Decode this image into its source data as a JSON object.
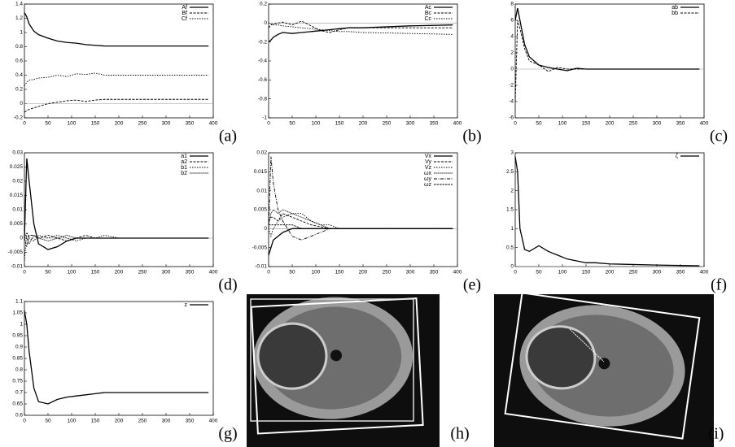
{
  "chart_data": [
    {
      "type": "line",
      "label": "(a)",
      "x": [
        0,
        5,
        10,
        20,
        30,
        50,
        70,
        90,
        110,
        130,
        150,
        170,
        200,
        300,
        390
      ],
      "xlim": [
        0,
        400
      ],
      "xticks": [
        0,
        50,
        100,
        150,
        200,
        250,
        300,
        350,
        400
      ],
      "ylim": [
        -0.2,
        1.4
      ],
      "yticks": [
        -0.2,
        0,
        0.2,
        0.4,
        0.6,
        0.8,
        1,
        1.2,
        1.4
      ],
      "series": [
        {
          "name": "Af",
          "color": "#000000",
          "values": [
            1.28,
            1.22,
            1.12,
            1.02,
            0.97,
            0.92,
            0.88,
            0.86,
            0.85,
            0.83,
            0.82,
            0.81,
            0.81,
            0.81,
            0.81
          ]
        },
        {
          "name": "Bf",
          "color": "#000000",
          "values": [
            -0.12,
            -0.1,
            -0.08,
            -0.06,
            -0.04,
            0.0,
            0.02,
            0.04,
            0.05,
            0.03,
            0.05,
            0.06,
            0.06,
            0.06,
            0.06
          ]
        },
        {
          "name": "Cf",
          "color": "#000000",
          "values": [
            0.25,
            0.3,
            0.33,
            0.34,
            0.36,
            0.37,
            0.4,
            0.38,
            0.42,
            0.41,
            0.43,
            0.4,
            0.4,
            0.4,
            0.4
          ]
        }
      ]
    },
    {
      "type": "line",
      "label": "(b)",
      "x": [
        0,
        5,
        10,
        20,
        30,
        50,
        70,
        90,
        110,
        130,
        150,
        170,
        200,
        300,
        390
      ],
      "xlim": [
        0,
        400
      ],
      "xticks": [
        0,
        50,
        100,
        150,
        200,
        250,
        300,
        350,
        400
      ],
      "ylim": [
        -1,
        0.2
      ],
      "yticks": [
        -1,
        -0.8,
        -0.6,
        -0.4,
        -0.2,
        0,
        0.2
      ],
      "series": [
        {
          "name": "Ac",
          "color": "#000000",
          "values": [
            -0.2,
            -0.18,
            -0.15,
            -0.12,
            -0.1,
            -0.11,
            -0.1,
            -0.09,
            -0.08,
            -0.07,
            -0.06,
            -0.05,
            -0.05,
            -0.03,
            -0.02
          ]
        },
        {
          "name": "Bc",
          "color": "#000000",
          "values": [
            -0.05,
            -0.02,
            -0.01,
            0,
            0.01,
            -0.02,
            0.02,
            -0.03,
            -0.08,
            -0.1,
            -0.07,
            -0.05,
            -0.05,
            -0.05,
            -0.05
          ]
        },
        {
          "name": "Cc",
          "color": "#000000",
          "values": [
            0,
            -0.01,
            -0.02,
            -0.02,
            -0.03,
            -0.04,
            -0.05,
            -0.06,
            -0.07,
            -0.08,
            -0.09,
            -0.09,
            -0.1,
            -0.11,
            -0.12
          ]
        }
      ]
    },
    {
      "type": "line",
      "label": "(c)",
      "x": [
        0,
        5,
        10,
        20,
        30,
        50,
        70,
        90,
        110,
        130,
        150,
        170,
        200,
        300,
        390
      ],
      "xlim": [
        0,
        400
      ],
      "xticks": [
        0,
        50,
        100,
        150,
        200,
        250,
        300,
        350,
        400
      ],
      "ylim": [
        -6,
        8
      ],
      "yticks": [
        -6,
        -4,
        -2,
        0,
        2,
        4,
        6,
        8
      ],
      "series": [
        {
          "name": "ab",
          "color": "#000000",
          "values": [
            6,
            7.5,
            6,
            3,
            1.5,
            0.5,
            0.2,
            0,
            -0.2,
            0.1,
            0,
            0,
            0,
            0,
            0
          ]
        },
        {
          "name": "bb",
          "color": "#000000",
          "values": [
            -4,
            6,
            5,
            2.5,
            1,
            0.5,
            -0.3,
            0.2,
            0,
            0,
            0,
            0,
            0,
            0,
            0
          ]
        }
      ]
    },
    {
      "type": "line",
      "label": "(d)",
      "x": [
        0,
        5,
        10,
        20,
        30,
        50,
        70,
        90,
        110,
        130,
        150,
        170,
        200,
        300,
        390
      ],
      "xlim": [
        0,
        400
      ],
      "xticks": [
        0,
        50,
        100,
        150,
        200,
        250,
        300,
        350,
        400
      ],
      "ylim": [
        -0.01,
        0.03
      ],
      "yticks": [
        -0.01,
        -0.005,
        0,
        0.005,
        0.01,
        0.015,
        0.02,
        0.025,
        0.03
      ],
      "series": [
        {
          "name": "a1",
          "color": "#000000",
          "values": [
            0,
            0.028,
            0.02,
            0.005,
            -0.002,
            -0.004,
            -0.003,
            -0.001,
            0,
            0,
            0,
            0,
            0,
            0,
            0
          ]
        },
        {
          "name": "a2",
          "color": "#000000",
          "values": [
            0,
            -0.003,
            0.001,
            0.001,
            0,
            0.001,
            0,
            -0.001,
            0,
            0.001,
            0,
            0,
            0,
            0,
            0
          ]
        },
        {
          "name": "b1",
          "color": "#000000",
          "values": [
            -0.008,
            0.002,
            0,
            -0.001,
            0.001,
            0,
            0.001,
            0,
            -0.001,
            0,
            0,
            0.001,
            0,
            0,
            0
          ]
        },
        {
          "name": "b2",
          "color": "#000000",
          "values": [
            0.002,
            0,
            -0.002,
            0.001,
            0,
            -0.001,
            0,
            0.001,
            0,
            0,
            0,
            0,
            0,
            0,
            0
          ]
        }
      ]
    },
    {
      "type": "line",
      "label": "(e)",
      "x": [
        0,
        5,
        10,
        20,
        30,
        50,
        70,
        90,
        110,
        130,
        150,
        170,
        200,
        300,
        390
      ],
      "xlim": [
        0,
        400
      ],
      "xticks": [
        0,
        50,
        100,
        150,
        200,
        250,
        300,
        350,
        400
      ],
      "ylim": [
        -0.01,
        0.02
      ],
      "yticks": [
        -0.01,
        -0.005,
        0,
        0.005,
        0.01,
        0.015,
        0.02
      ],
      "series": [
        {
          "name": "Vx",
          "color": "#000000",
          "values": [
            -0.007,
            -0.005,
            -0.003,
            -0.002,
            -0.001,
            0,
            0,
            0,
            0,
            0,
            0,
            0,
            0,
            0,
            0
          ]
        },
        {
          "name": "Vy",
          "color": "#000000",
          "values": [
            0.002,
            0.003,
            0.003,
            0.002,
            0.004,
            0.003,
            0.002,
            0.001,
            0.0005,
            0,
            0,
            0,
            0,
            0,
            0
          ]
        },
        {
          "name": "Vz",
          "color": "#000000",
          "values": [
            0,
            -0.002,
            0,
            0.002,
            0.003,
            0.004,
            0.004,
            0.002,
            0.001,
            0.001,
            0,
            0,
            0,
            0,
            0
          ]
        },
        {
          "name": "ωx",
          "color": "#000000",
          "values": [
            0.001,
            0.004,
            0.005,
            0.004,
            0.005,
            0.004,
            0.003,
            0.002,
            0.001,
            0,
            0,
            0,
            0,
            0,
            0
          ]
        },
        {
          "name": "ωy",
          "color": "#000000",
          "values": [
            0,
            0.019,
            0.012,
            0.005,
            0.002,
            -0.002,
            -0.003,
            -0.002,
            -0.001,
            0,
            0,
            0,
            0,
            0,
            0
          ]
        },
        {
          "name": "ωz",
          "color": "#000000",
          "values": [
            0.001,
            0.001,
            0.001,
            0.001,
            0.001,
            0.001,
            0,
            0,
            0,
            0,
            0,
            0,
            0,
            0,
            0
          ]
        }
      ]
    },
    {
      "type": "line",
      "label": "(f)",
      "x": [
        0,
        5,
        10,
        20,
        30,
        50,
        70,
        90,
        110,
        130,
        150,
        170,
        200,
        300,
        390
      ],
      "xlim": [
        0,
        400
      ],
      "xticks": [
        0,
        50,
        100,
        150,
        200,
        250,
        300,
        350,
        400
      ],
      "ylim": [
        0,
        3
      ],
      "yticks": [
        0,
        0.5,
        1,
        1.5,
        2,
        2.5,
        3
      ],
      "series": [
        {
          "name": "ζ",
          "color": "#000000",
          "values": [
            2.9,
            2.5,
            1,
            0.45,
            0.4,
            0.55,
            0.4,
            0.3,
            0.2,
            0.15,
            0.1,
            0.1,
            0.07,
            0.04,
            0.02
          ]
        }
      ]
    },
    {
      "type": "line",
      "label": "(g)",
      "x": [
        0,
        5,
        10,
        20,
        30,
        50,
        70,
        90,
        110,
        130,
        150,
        170,
        200,
        300,
        390
      ],
      "xlim": [
        0,
        400
      ],
      "xticks": [
        0,
        50,
        100,
        150,
        200,
        250,
        300,
        350,
        400
      ],
      "ylim": [
        0.6,
        1.1
      ],
      "yticks": [
        0.6,
        0.65,
        0.7,
        0.75,
        0.8,
        0.85,
        0.9,
        0.95,
        1,
        1.05,
        1.1
      ],
      "series": [
        {
          "name": "z",
          "color": "#000000",
          "values": [
            1.06,
            1.0,
            0.88,
            0.72,
            0.66,
            0.65,
            0.67,
            0.68,
            0.685,
            0.69,
            0.695,
            0.7,
            0.7,
            0.7,
            0.7
          ]
        }
      ]
    }
  ],
  "images": [
    {
      "label": "(h)"
    },
    {
      "label": "(i)"
    }
  ]
}
